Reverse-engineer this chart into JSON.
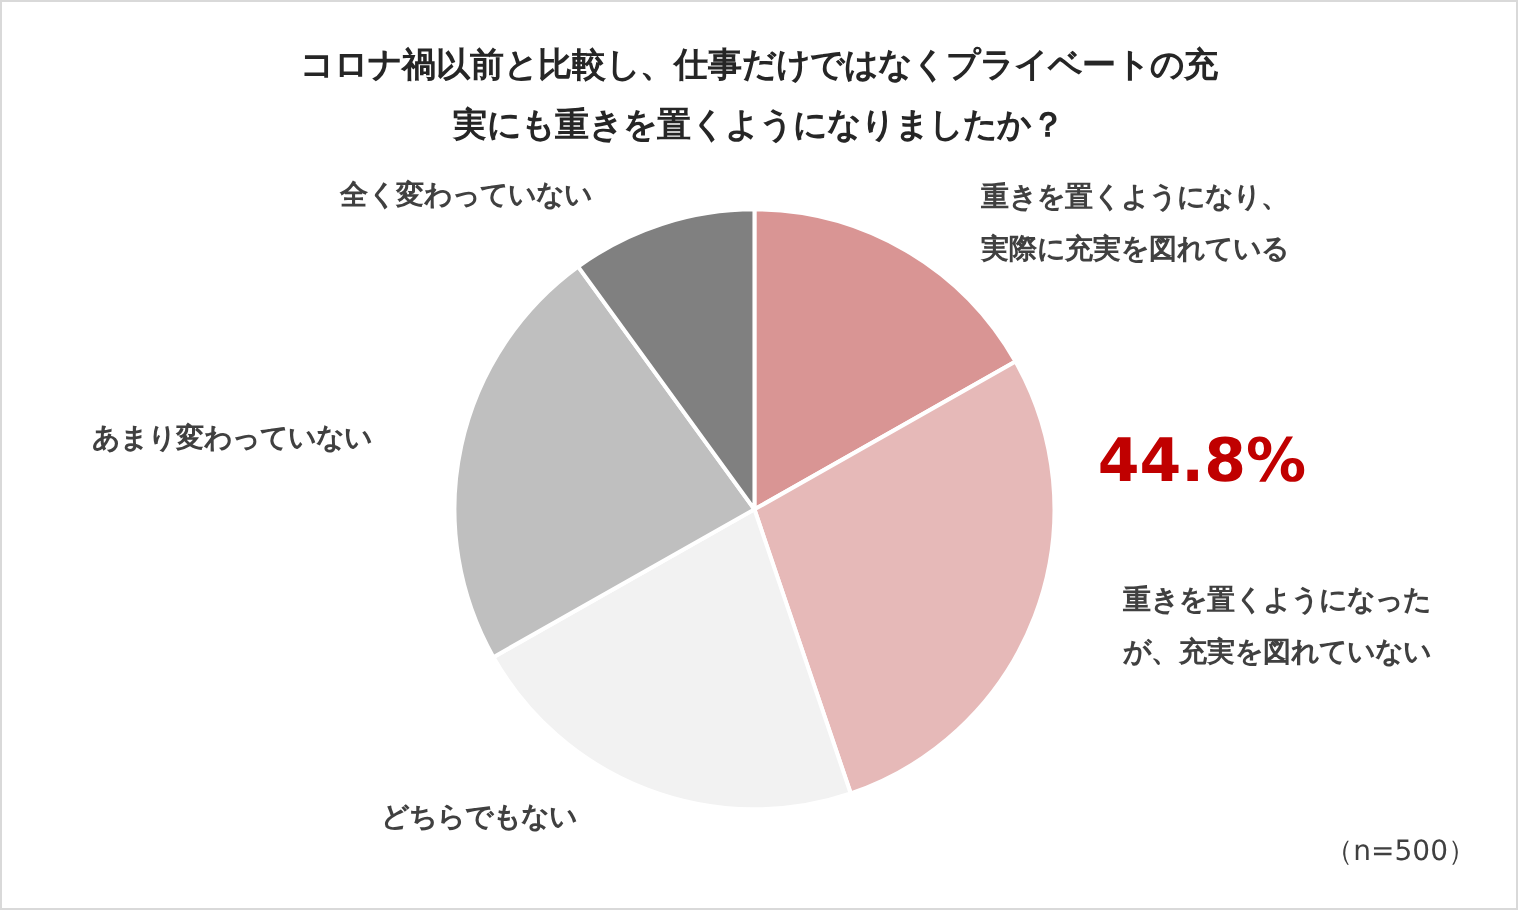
{
  "chart_data": {
    "type": "pie",
    "title": "コロナ禍以前と比較し、仕事だけではなくプライベートの充実にも重きを置くようになりましたか？",
    "categories": [
      "重きを置くようになり、実際に充実を図れている",
      "重きを置くようになったが、充実を図れていない",
      "どちらでもない",
      "あまり変わっていない",
      "全く変わっていない"
    ],
    "values": [
      16.8,
      28,
      22,
      23.2,
      10
    ],
    "colors": [
      "#d99594",
      "#e6b9b8",
      "#f2f2f2",
      "#bfbfbf",
      "#808080"
    ],
    "annotations": [
      "44.8%",
      "（n=500）"
    ],
    "legend": false
  }
}
